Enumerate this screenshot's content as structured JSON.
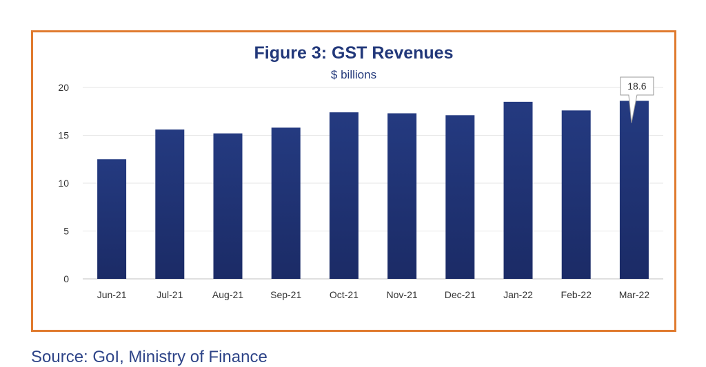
{
  "chart_data": {
    "type": "bar",
    "title": "Figure 3: GST Revenues",
    "subtitle": "$ billions",
    "categories": [
      "Jun-21",
      "Jul-21",
      "Aug-21",
      "Sep-21",
      "Oct-21",
      "Nov-21",
      "Dec-21",
      "Jan-22",
      "Feb-22",
      "Mar-22"
    ],
    "values": [
      12.5,
      15.6,
      15.2,
      15.8,
      17.4,
      17.3,
      17.1,
      18.5,
      17.6,
      18.6
    ],
    "ylim": [
      0,
      20
    ],
    "yticks": [
      0,
      5,
      10,
      15,
      20
    ],
    "grid": true,
    "bar_color": "#1b2b66",
    "annotation": {
      "category": "Mar-22",
      "label": "18.6"
    }
  },
  "source": "Source: GoI, Ministry of Finance"
}
